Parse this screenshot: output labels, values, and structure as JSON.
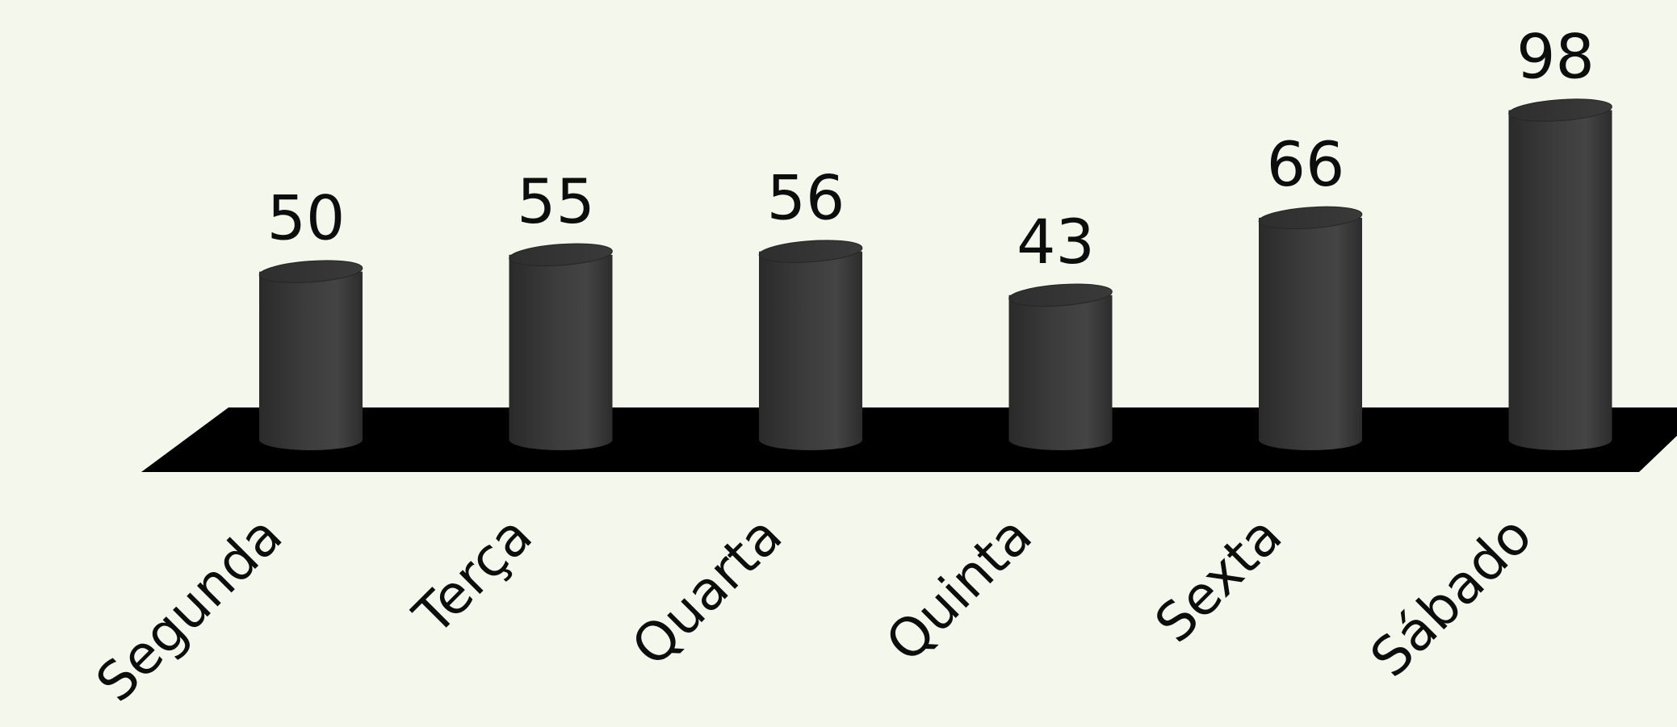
{
  "chart_data": {
    "type": "bar",
    "categories": [
      "Segunda",
      "Terça",
      "Quarta",
      "Quinta",
      "Sexta",
      "Sábado"
    ],
    "values": [
      50,
      55,
      56,
      43,
      66,
      98
    ],
    "title": "",
    "xlabel": "",
    "ylabel": "",
    "data_labels": [
      "50",
      "55",
      "56",
      "43",
      "66",
      "98"
    ],
    "bar_shape": "cylinder-3d",
    "grid": false,
    "legend": "none"
  },
  "colors": {
    "background": "#f3f7ec",
    "bar": "#363636",
    "floor": "#000000",
    "text": "#0d0d0d"
  }
}
